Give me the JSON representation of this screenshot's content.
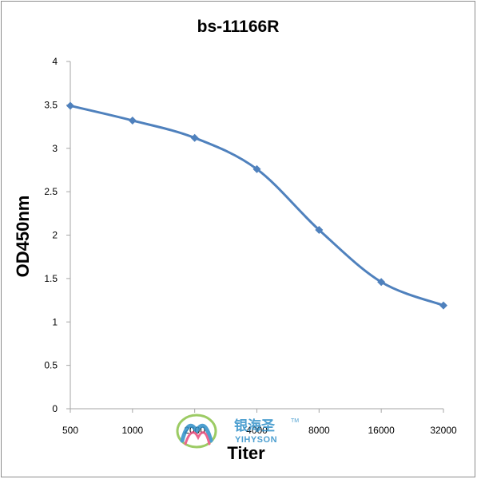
{
  "chart_data": {
    "type": "line",
    "title": "bs-11166R",
    "xlabel": "Titer",
    "ylabel": "OD450nm",
    "categories": [
      "500",
      "1000",
      "2000",
      "4000",
      "8000",
      "16000",
      "32000"
    ],
    "series": [
      {
        "values": [
          3.49,
          3.32,
          3.12,
          2.76,
          2.06,
          1.46,
          1.19
        ]
      }
    ],
    "ylim": [
      0,
      4
    ],
    "yticks": [
      "0",
      "0.5",
      "1",
      "1.5",
      "2",
      "2.5",
      "3",
      "3.5",
      "4"
    ],
    "grid": false,
    "legend": "none",
    "line_color": "#4f81bd"
  },
  "watermark": {
    "cn_text": "银海圣",
    "en_text": "YIHYSON",
    "tm": "TM"
  }
}
